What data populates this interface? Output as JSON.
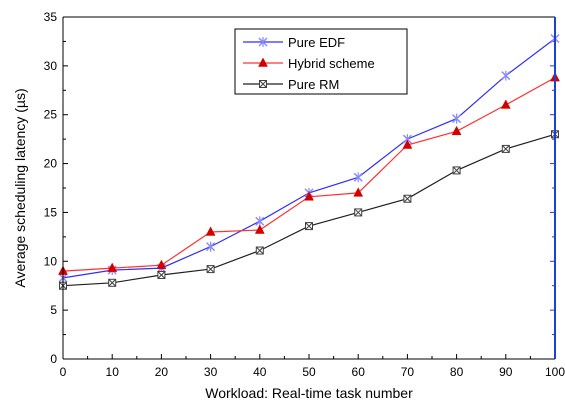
{
  "chart_data": {
    "type": "line",
    "title": "",
    "xlabel": "Workload: Real-time task number",
    "ylabel": "Average scheduling latency (µs)",
    "x": [
      0,
      10,
      20,
      30,
      40,
      50,
      60,
      70,
      80,
      90,
      100
    ],
    "xlim": [
      0,
      100
    ],
    "ylim": [
      0,
      35
    ],
    "xticks": [
      "0",
      "10",
      "20",
      "30",
      "40",
      "50",
      "60",
      "70",
      "80",
      "90",
      "100"
    ],
    "yticks": [
      "0",
      "5",
      "10",
      "15",
      "20",
      "25",
      "30",
      "35"
    ],
    "grid": false,
    "legend_position": "top-center",
    "series": [
      {
        "name": "Pure EDF",
        "color": "#2f2fff",
        "marker_color": "#8a8aff",
        "marker": "asterisk",
        "values": [
          8.3,
          9.1,
          9.3,
          11.5,
          14.1,
          17.0,
          18.6,
          22.5,
          24.6,
          29.0,
          32.8
        ]
      },
      {
        "name": "Hybrid scheme",
        "color": "#ff3030",
        "marker_color": "#d40000",
        "marker": "triangle",
        "values": [
          9.0,
          9.3,
          9.6,
          13.0,
          13.2,
          16.6,
          17.0,
          21.9,
          23.3,
          26.0,
          28.8
        ]
      },
      {
        "name": "Pure RM",
        "color": "#202020",
        "marker_color": "#404040",
        "marker": "boxed-x",
        "values": [
          7.5,
          7.8,
          8.6,
          9.2,
          11.1,
          13.6,
          15.0,
          16.4,
          19.3,
          21.5,
          23.0
        ]
      }
    ],
    "right_axis_color": "#1f3fd0"
  }
}
